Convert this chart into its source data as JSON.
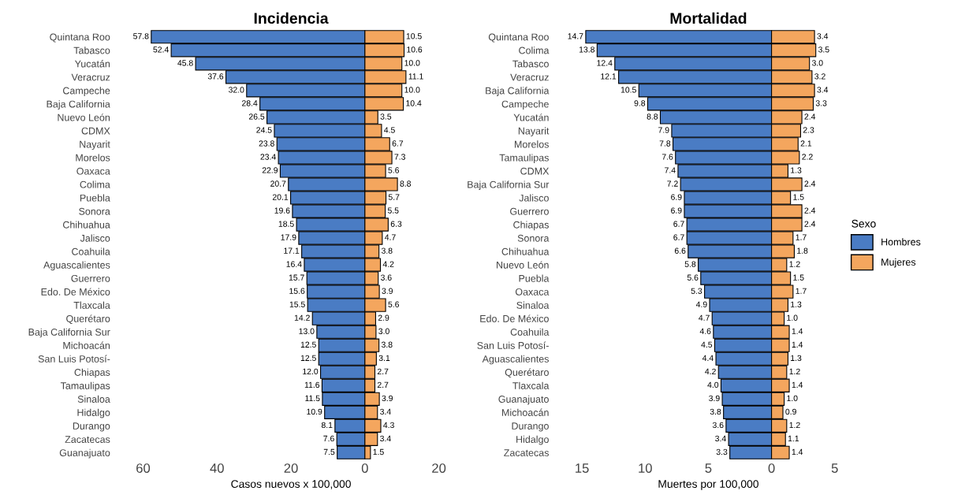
{
  "chart_data": [
    {
      "type": "bar",
      "orientation": "horizontal",
      "title": "Incidencia",
      "xlabel": "Casos nuevos x 100,000",
      "categories": [
        "Quintana Roo",
        "Tabasco",
        "Yucatán",
        "Veracruz",
        "Campeche",
        "Baja California",
        "Nuevo León",
        "CDMX",
        "Nayarit",
        "Morelos",
        "Oaxaca",
        "Colima",
        "Puebla",
        "Sonora",
        "Chihuahua",
        "Jalisco",
        "Coahuila",
        "Aguascalientes",
        "Guerrero",
        "Edo. De México",
        "Tlaxcala",
        "Querétaro",
        "Baja California Sur",
        "Michoacán",
        "San Luis Potosí-",
        "Chiapas",
        "Tamaulipas",
        "Sinaloa",
        "Hidalgo",
        "Durango",
        "Zacatecas",
        "Guanajuato"
      ],
      "series": [
        {
          "color": "#4a7cc4",
          "base": [
            -57.8,
            -52.4,
            -45.8,
            -37.6,
            -32.0,
            -28.4,
            -26.5,
            -24.5,
            -23.8,
            -23.4,
            -22.9,
            -20.7,
            -20.1,
            -19.6,
            -18.5,
            -17.9,
            -17.1,
            -16.4,
            -15.7,
            -15.6,
            -15.5,
            -14.2,
            -13.0,
            -12.5,
            -12.5,
            -12.0,
            -11.6,
            -11.5,
            -10.9,
            -8.1,
            -7.6,
            -7.5
          ],
          "values": [
            57.8,
            52.4,
            45.8,
            37.6,
            32.0,
            28.4,
            26.5,
            24.5,
            23.8,
            23.4,
            22.9,
            20.7,
            20.1,
            19.6,
            18.5,
            17.9,
            17.1,
            16.4,
            15.7,
            15.6,
            15.5,
            14.2,
            13.0,
            12.5,
            12.5,
            12.0,
            11.6,
            11.5,
            10.9,
            8.1,
            7.6,
            7.5
          ],
          "value_labels": [
            "57.8",
            "52.4",
            "45.8",
            "37.6",
            "32.0",
            "28.4",
            "26.5",
            "24.5",
            "23.8",
            "23.4",
            "22.9",
            "20.7",
            "20.1",
            "19.6",
            "18.5",
            "17.9",
            "17.1",
            "16.4",
            "15.7",
            "15.6",
            "15.5",
            "14.2",
            "13.0",
            "12.5",
            "12.5",
            "12.0",
            "11.6",
            "11.5",
            "10.9",
            "8.1",
            "7.6",
            "7.5"
          ]
        },
        {
          "color": "#f4a65e",
          "values": [
            10.5,
            10.6,
            10.0,
            11.1,
            10.0,
            10.4,
            3.5,
            4.5,
            6.7,
            7.3,
            5.6,
            8.8,
            5.7,
            5.5,
            6.3,
            4.7,
            3.8,
            4.2,
            3.6,
            3.9,
            5.6,
            2.9,
            3.0,
            3.8,
            3.1,
            2.7,
            2.7,
            3.9,
            3.4,
            4.3,
            3.4,
            1.5
          ],
          "value_labels": [
            "10.5",
            "10.6",
            "10.0",
            "11.1",
            "10.0",
            "10.4",
            "3.5",
            "4.5",
            "6.7",
            "7.3",
            "5.6",
            "8.8",
            "5.7",
            "5.5",
            "6.3",
            "4.7",
            "3.8",
            "4.2",
            "3.6",
            "3.9",
            "5.6",
            "2.9",
            "3.0",
            "3.8",
            "3.1",
            "2.7",
            "2.7",
            "3.9",
            "3.4",
            "4.3",
            "3.4",
            "1.5"
          ]
        }
      ],
      "xlim": [
        -60,
        20
      ],
      "xticks": [
        {
          "value": -60,
          "label": "60"
        },
        {
          "value": -40,
          "label": "40"
        },
        {
          "value": -20,
          "label": "20"
        },
        0,
        20
      ],
      "grid": false
    },
    {
      "type": "bar",
      "orientation": "horizontal",
      "title": "Mortalidad",
      "xlabel": "Muertes por 100,000",
      "legend": "right",
      "legend_title": "Sexo",
      "categories": [
        "Quintana Roo",
        "Colima",
        "Tabasco",
        "Veracruz",
        "Baja California",
        "Campeche",
        "Yucatán",
        "Nayarit",
        "Morelos",
        "Tamaulipas",
        "CDMX",
        "Baja California Sur",
        "Jalisco",
        "Guerrero",
        "Chiapas",
        "Sonora",
        "Chihuahua",
        "Nuevo León",
        "Puebla",
        "Oaxaca",
        "Sinaloa",
        "Edo. De México",
        "Coahuila",
        "San Luis Potosí-",
        "Aguascalientes",
        "Querétaro",
        "Tlaxcala",
        "Guanajuato",
        "Michoacán",
        "Durango",
        "Hidalgo",
        "Zacatecas"
      ],
      "series": [
        {
          "name": "Hombres",
          "color": "#4a7cc4",
          "base": [
            -14.7,
            -13.8,
            -12.4,
            -12.1,
            -10.5,
            -9.8,
            -8.8,
            -7.9,
            -7.8,
            -7.6,
            -7.4,
            -7.2,
            -6.9,
            -6.9,
            -6.7,
            -6.7,
            -6.6,
            -5.8,
            -5.6,
            -5.3,
            -4.9,
            -4.7,
            -4.6,
            -4.5,
            -4.4,
            -4.2,
            -4.0,
            -3.9,
            -3.8,
            -3.6,
            -3.4,
            -3.3
          ],
          "values": [
            14.7,
            13.8,
            12.4,
            12.1,
            10.5,
            9.8,
            8.8,
            7.9,
            7.8,
            7.6,
            7.4,
            7.2,
            6.9,
            6.9,
            6.7,
            6.7,
            6.6,
            5.8,
            5.6,
            5.3,
            4.9,
            4.7,
            4.6,
            4.5,
            4.4,
            4.2,
            4.0,
            3.9,
            3.8,
            3.6,
            3.4,
            3.3
          ],
          "value_labels": [
            "14.7",
            "13.8",
            "12.4",
            "12.1",
            "10.5",
            "9.8",
            "8.8",
            "7.9",
            "7.8",
            "7.6",
            "7.4",
            "7.2",
            "6.9",
            "6.9",
            "6.7",
            "6.7",
            "6.6",
            "5.8",
            "5.6",
            "5.3",
            "4.9",
            "4.7",
            "4.6",
            "4.5",
            "4.4",
            "4.2",
            "4.0",
            "3.9",
            "3.8",
            "3.6",
            "3.4",
            "3.3"
          ]
        },
        {
          "name": "Mujeres",
          "color": "#f4a65e",
          "values": [
            3.4,
            3.5,
            3.0,
            3.2,
            3.4,
            3.3,
            2.4,
            2.3,
            2.1,
            2.2,
            1.3,
            2.4,
            1.5,
            2.4,
            2.4,
            1.7,
            1.8,
            1.2,
            1.5,
            1.7,
            1.3,
            1.0,
            1.4,
            1.4,
            1.3,
            1.2,
            1.4,
            1.0,
            0.9,
            1.2,
            1.1,
            1.4
          ],
          "value_labels": [
            "3.4",
            "3.5",
            "3.0",
            "3.2",
            "3.4",
            "3.3",
            "2.4",
            "2.3",
            "2.1",
            "2.2",
            "1.3",
            "2.4",
            "1.5",
            "2.4",
            "2.4",
            "1.7",
            "1.8",
            "1.2",
            "1.5",
            "1.7",
            "1.3",
            "1.0",
            "1.4",
            "1.4",
            "1.3",
            "1.2",
            "1.4",
            "1.0",
            "0.9",
            "1.2",
            "1.1",
            "1.4"
          ]
        }
      ],
      "xlim": [
        -15,
        5
      ],
      "xticks": [
        {
          "value": -15,
          "label": "15"
        },
        {
          "value": -10,
          "label": "10"
        },
        {
          "value": -5,
          "label": "5"
        },
        0,
        5
      ],
      "grid": false
    }
  ]
}
